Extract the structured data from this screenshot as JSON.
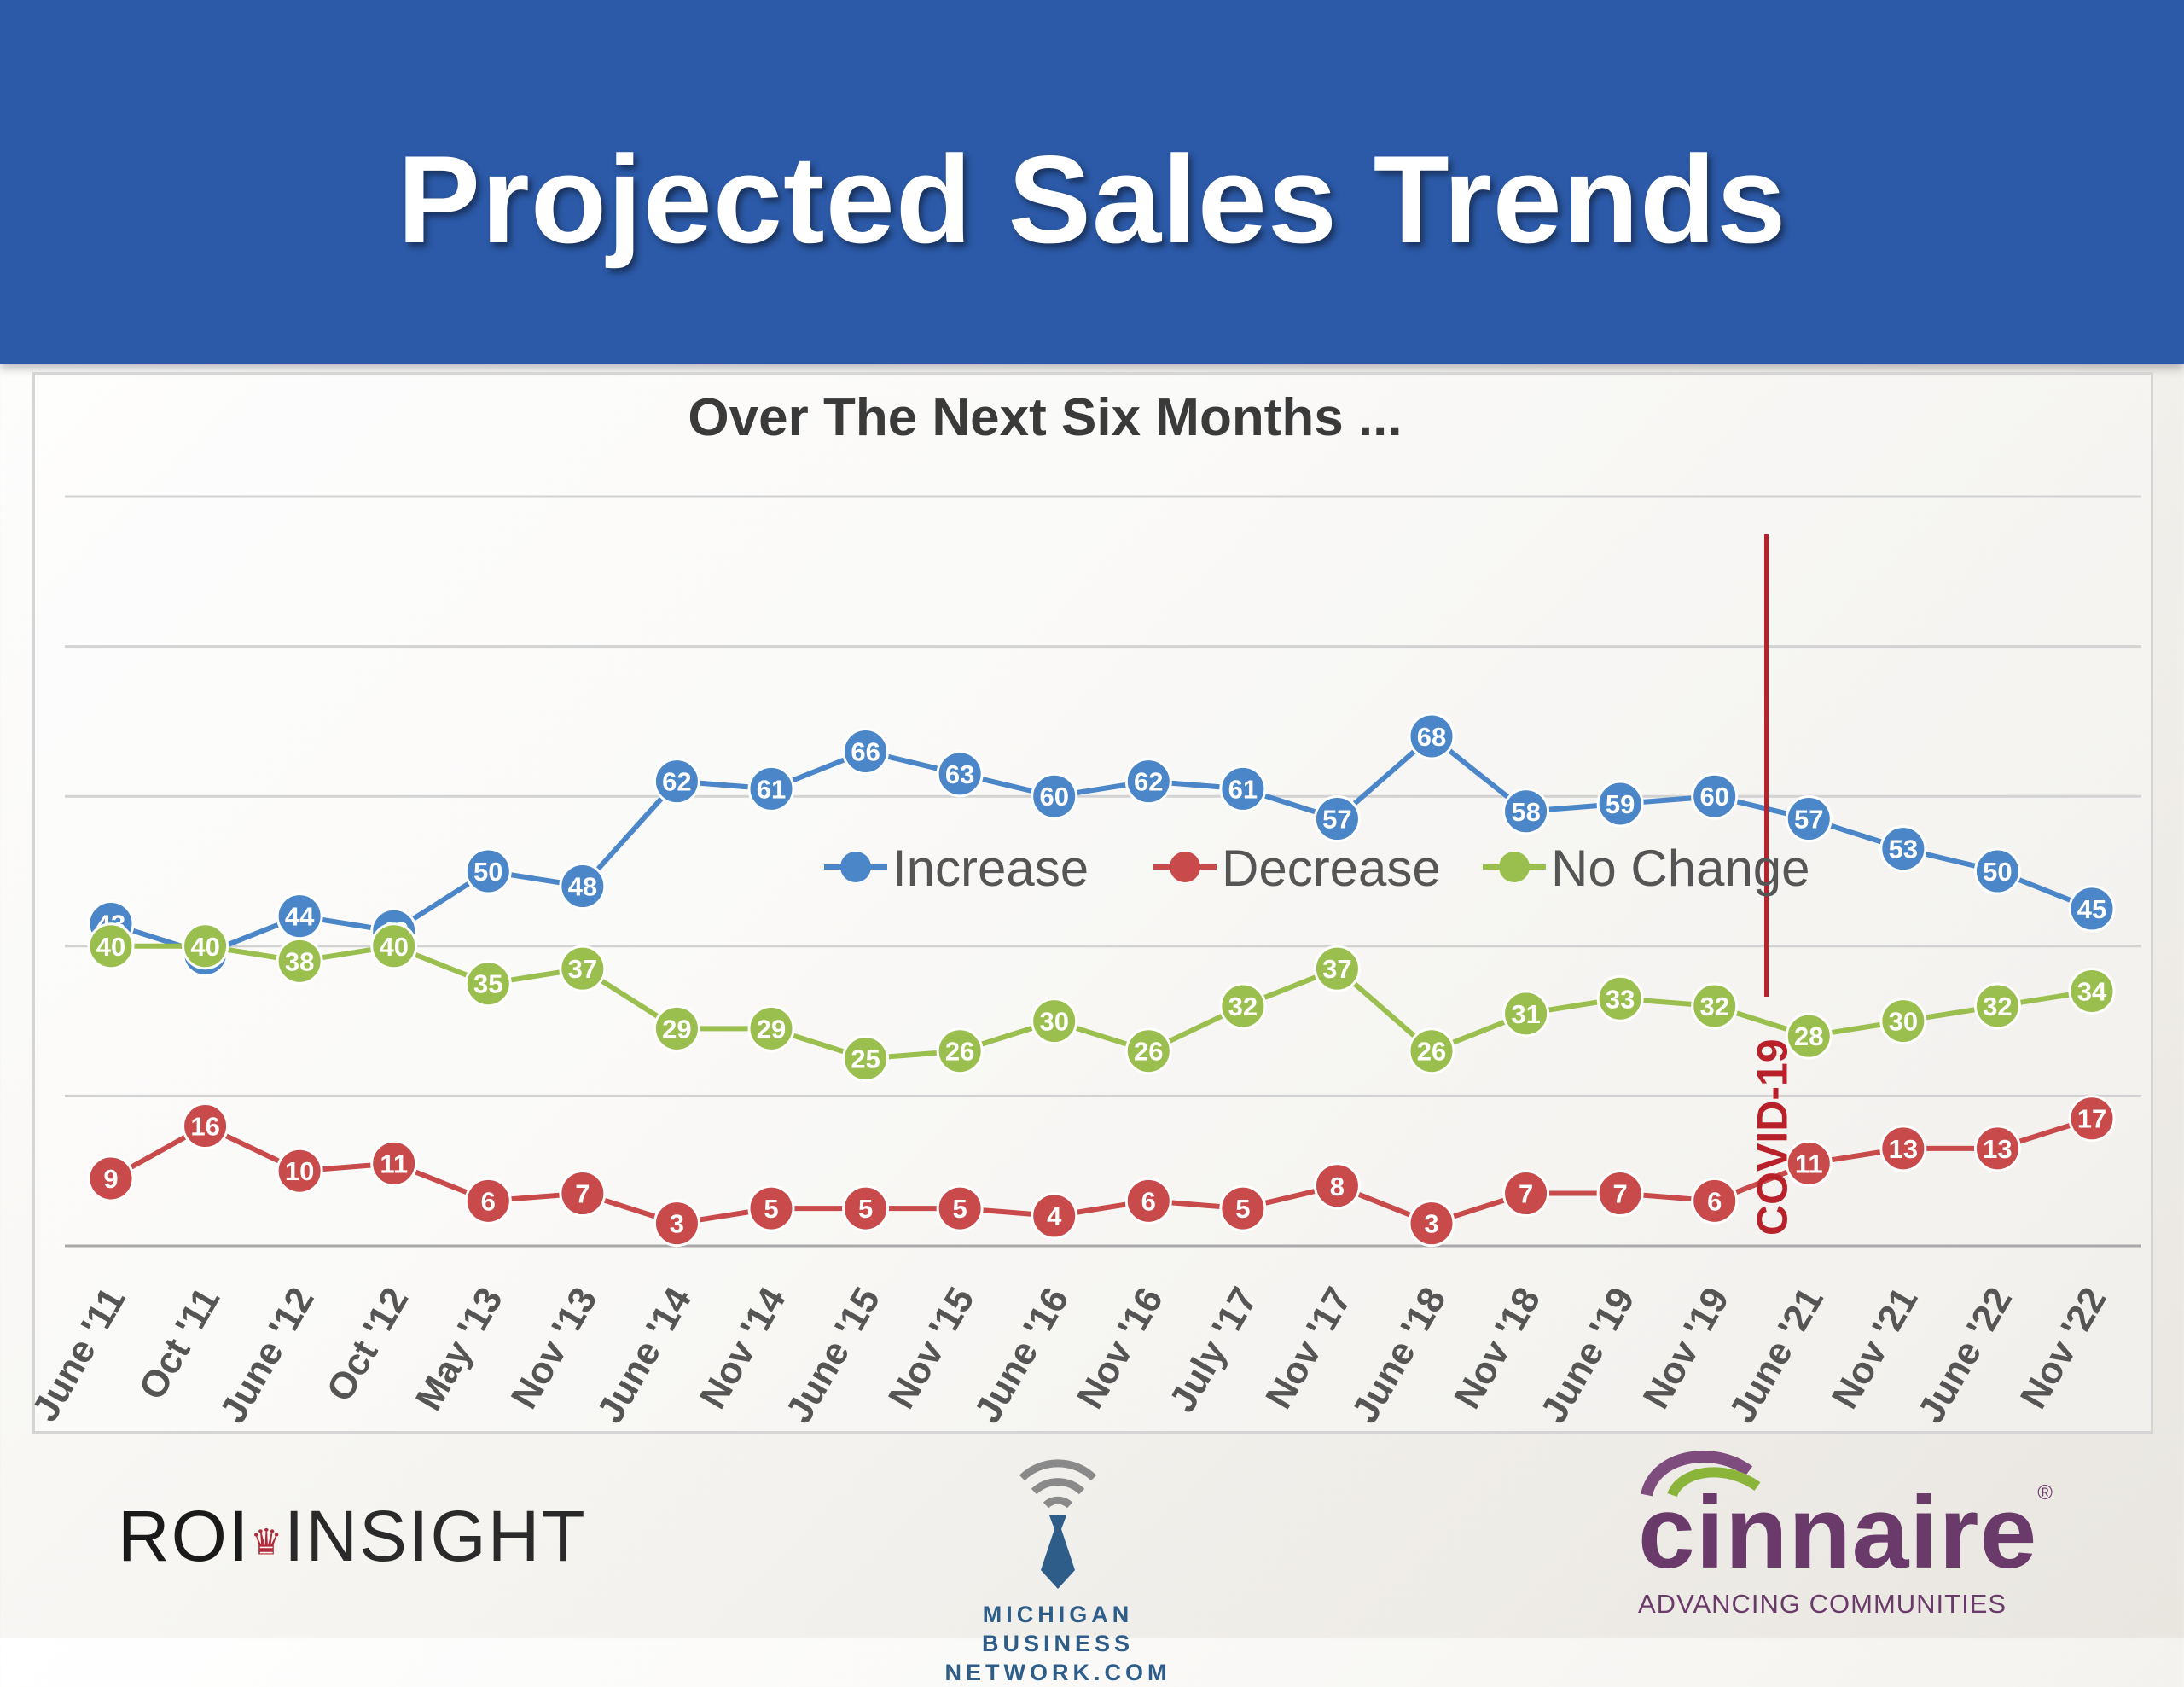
{
  "header": {
    "title": "Projected Sales Trends"
  },
  "chart_data": {
    "type": "line",
    "title": "Over The Next Six Months ...",
    "xlabel": "",
    "ylabel": "",
    "ylim": [
      0,
      100
    ],
    "categories": [
      "June '11",
      "Oct '11",
      "June '12",
      "Oct '12",
      "May '13",
      "Nov '13",
      "June '14",
      "Nov '14",
      "June '15",
      "Nov '15",
      "June '16",
      "Nov '16",
      "July '17",
      "Nov '17",
      "June '18",
      "Nov '18",
      "June '19",
      "Nov '19",
      "June '21",
      "Nov '21",
      "June '22",
      "Nov '22"
    ],
    "series": [
      {
        "name": "Increase",
        "color": "#4a86c8",
        "values": [
          43,
          39,
          44,
          42,
          50,
          48,
          62,
          61,
          66,
          63,
          60,
          62,
          61,
          57,
          68,
          58,
          59,
          60,
          57,
          53,
          50,
          45
        ]
      },
      {
        "name": "Decrease",
        "color": "#c94a4a",
        "values": [
          9,
          16,
          10,
          11,
          6,
          7,
          3,
          5,
          5,
          5,
          4,
          6,
          5,
          8,
          3,
          7,
          7,
          6,
          11,
          13,
          13,
          17
        ]
      },
      {
        "name": "No Change",
        "color": "#9bbf4f",
        "values": [
          40,
          40,
          38,
          40,
          35,
          37,
          29,
          29,
          25,
          26,
          30,
          26,
          32,
          37,
          26,
          31,
          33,
          32,
          28,
          30,
          32,
          34
        ]
      }
    ],
    "annotations": [
      {
        "label": "COVID-19",
        "color": "#b8202a",
        "between": [
          "Nov '19",
          "June '21"
        ]
      }
    ],
    "legend": "center-right",
    "grid": true
  },
  "footer": {
    "roi_left": "ROI",
    "roi_right": "INSIGHT",
    "mbn_line1": "MICHIGAN BUSINESS",
    "mbn_line2": "NETWORK.COM",
    "cinnaire_name": "cinnaire",
    "cinnaire_reg": "®",
    "cinnaire_tag": "ADVANCING COMMUNITIES"
  }
}
